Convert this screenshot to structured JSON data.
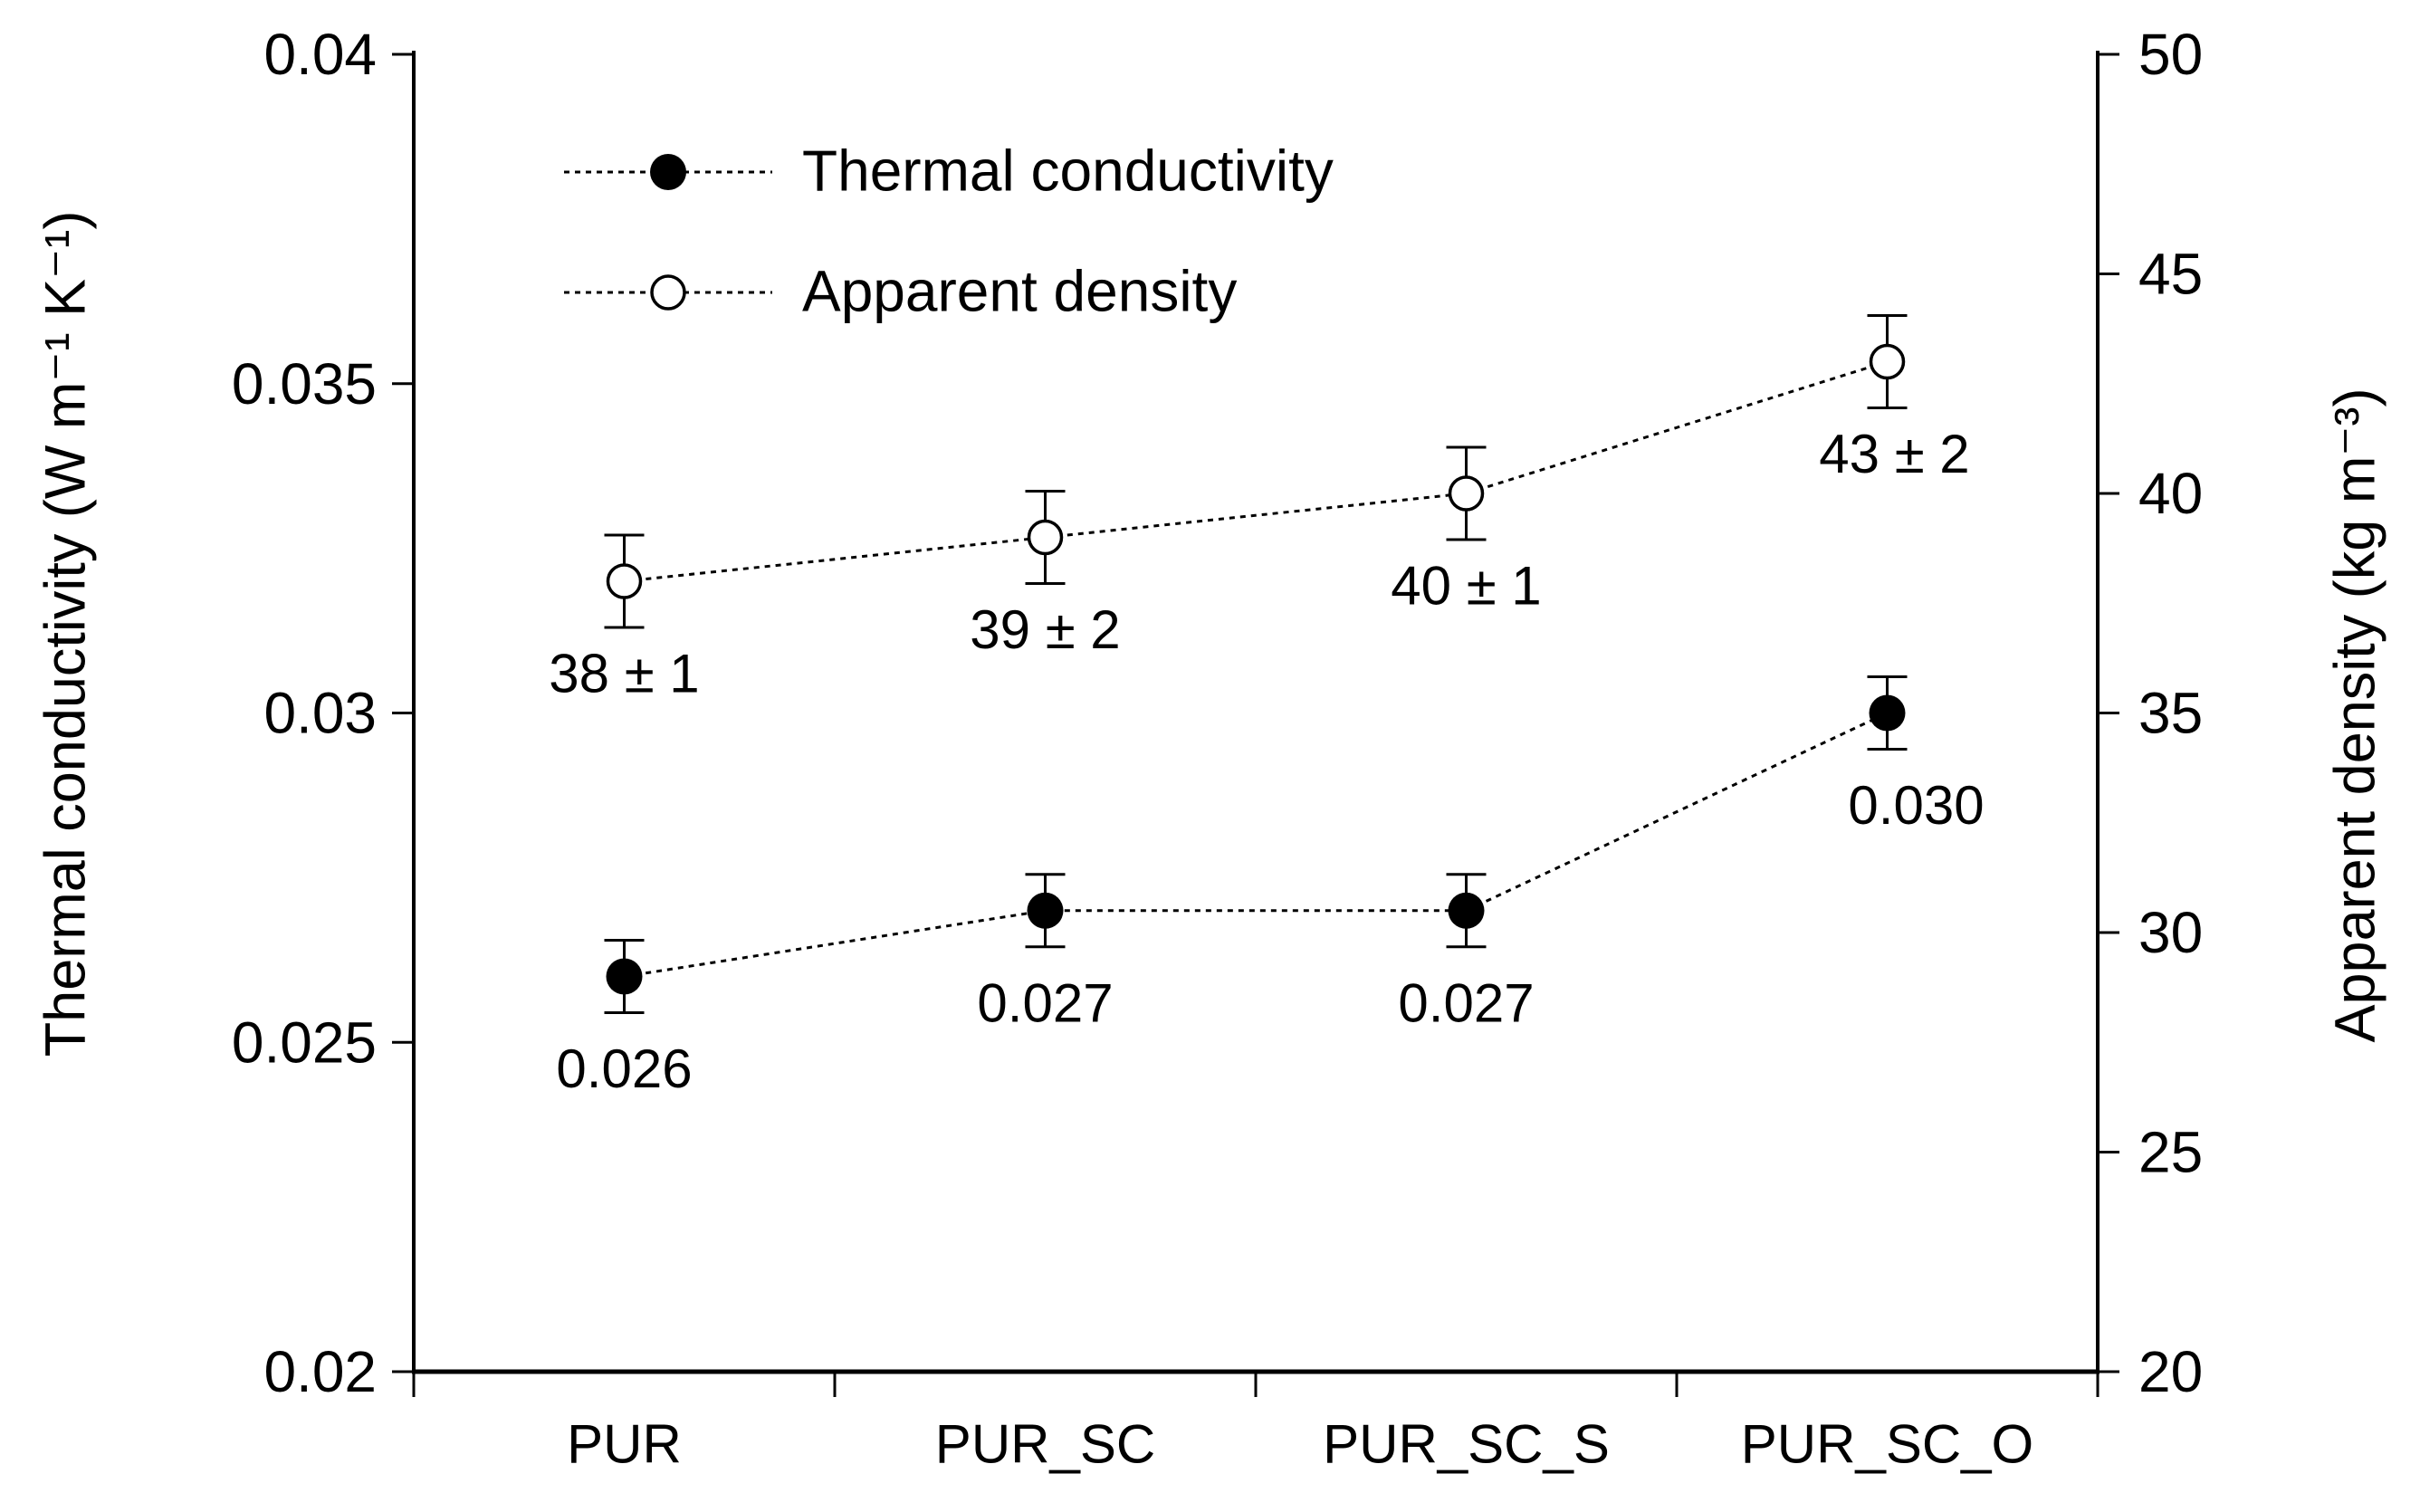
{
  "chart_data": {
    "type": "line",
    "title": "",
    "categories": [
      "PUR",
      "PUR_SC",
      "PUR_SC_S",
      "PUR_SC_O"
    ],
    "series": [
      {
        "name": "Thermal conductivity",
        "axis": "left",
        "marker": "filled-circle",
        "line_style": "dotted",
        "color": "#000000",
        "values": [
          0.026,
          0.027,
          0.027,
          0.03
        ],
        "errors": [
          0.0005,
          0.0005,
          0.0005,
          0.0005
        ],
        "point_labels": [
          "0.026",
          "0.027",
          "0.027",
          "0.030"
        ]
      },
      {
        "name": "Apparent density",
        "axis": "right",
        "marker": "open-circle",
        "line_style": "dotted",
        "color": "#000000",
        "values": [
          38,
          39,
          40,
          43
        ],
        "errors": [
          1,
          2,
          1,
          2
        ],
        "point_labels": [
          "38 ± 1",
          "39 ± 2",
          "40 ± 1",
          "43 ± 2"
        ]
      }
    ],
    "left_axis": {
      "label": "Thermal conductivity (W m⁻¹ K⁻¹)",
      "min": 0.02,
      "max": 0.04,
      "tick_values": [
        0.04,
        0.035,
        0.03,
        0.025,
        0.02
      ],
      "tick_labels": [
        "0.04",
        "0.035",
        "0.03",
        "0.025",
        "0.02"
      ]
    },
    "right_axis": {
      "label": "Apparent density (kg m⁻³)",
      "min": 20,
      "max": 50,
      "tick_values": [
        50,
        45,
        40,
        35,
        30,
        25,
        20
      ],
      "tick_labels": [
        "50",
        "45",
        "40",
        "35",
        "30",
        "25",
        "20"
      ]
    },
    "x_axis": {
      "tick_labels": [
        "PUR",
        "PUR_SC",
        "PUR_SC_S",
        "PUR_SC_O"
      ]
    },
    "legend": {
      "position": "inside-top-left",
      "items": [
        "Thermal conductivity",
        "Apparent density"
      ]
    },
    "grid": false,
    "background": "#ffffff",
    "foreground": "#000000"
  }
}
